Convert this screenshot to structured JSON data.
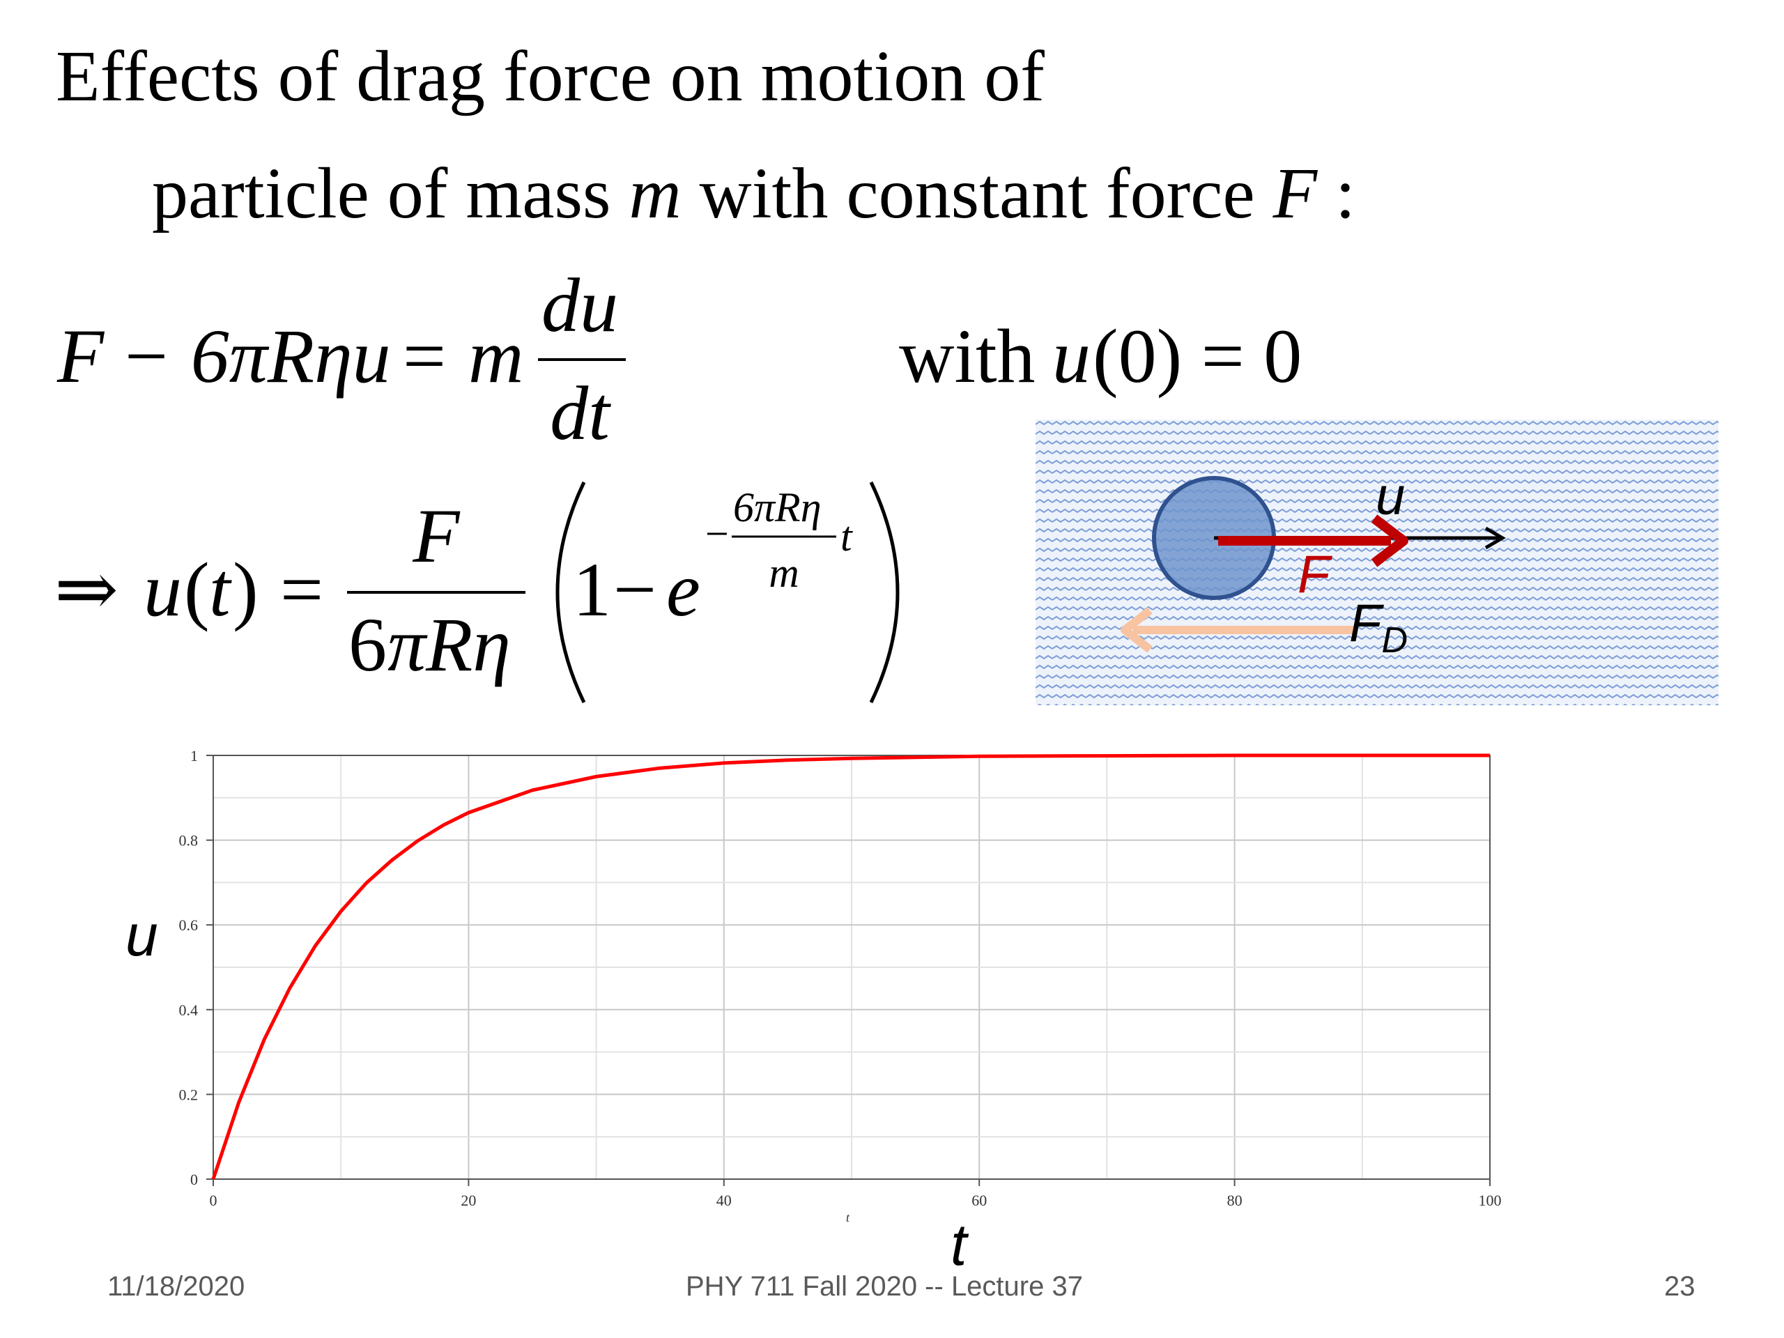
{
  "slide": {
    "title_line1": "Effects of drag force on motion of",
    "title_line2_a": "particle of mass ",
    "title_line2_m": "m",
    "title_line2_b": " with constant force ",
    "title_line2_F": "F",
    "title_line2_c": " :"
  },
  "equations": {
    "eq1_lhs_F": "F",
    "eq1_lhs_rest": "− 6πRηu",
    "eq1_eq": "=",
    "eq1_m": "m",
    "eq1_num": "du",
    "eq1_den": "dt",
    "eq1_with": "with",
    "eq1_cond_u": "u",
    "eq1_cond_rest": "(0) = 0",
    "eq2_arrow": "⇒",
    "eq2_u": "u",
    "eq2_t": "t",
    "eq2_paren_open": "(",
    "eq2_paren_close": ")",
    "eq2_eq": "=",
    "eq2_num": "F",
    "eq2_den_a": "6",
    "eq2_den_b": "πRη",
    "eq2_one": "1",
    "eq2_minus": "−",
    "eq2_e": "e",
    "eq2_exp_minus": "−",
    "eq2_exp_num": "6πRη",
    "eq2_exp_den": "m",
    "eq2_exp_t": "t"
  },
  "diagram": {
    "label_u": "u",
    "label_F": "F",
    "label_FD": "F",
    "label_FD_sub": "D",
    "colors": {
      "fluid_bg": "#eef3fb",
      "wave": "#7f9fd8",
      "ball_fill": "#6f94cc",
      "ball_stroke": "#2f528f",
      "force_F": "#c00000",
      "force_FD": "#f7c3a1",
      "velocity": "#000000"
    }
  },
  "plot": {
    "ylabel_big": "u",
    "xlabel_big": "t",
    "xlabel_small": "t"
  },
  "chart_data": {
    "type": "line",
    "title": "",
    "xlabel": "t",
    "ylabel": "u",
    "xlim": [
      0,
      100
    ],
    "ylim": [
      0,
      1
    ],
    "x_ticks": [
      "0",
      "20",
      "40",
      "60",
      "80",
      "100"
    ],
    "y_ticks": [
      "0",
      "0.2",
      "0.4",
      "0.6",
      "0.8",
      "1"
    ],
    "grid": true,
    "series": [
      {
        "color": "#ff0000",
        "x": [
          0,
          2,
          4,
          6,
          8,
          10,
          12,
          14,
          16,
          18,
          20,
          25,
          30,
          35,
          40,
          45,
          50,
          60,
          70,
          80,
          90,
          100
        ],
        "y": [
          0,
          0.181,
          0.33,
          0.451,
          0.551,
          0.632,
          0.699,
          0.753,
          0.798,
          0.835,
          0.865,
          0.918,
          0.95,
          0.97,
          0.982,
          0.989,
          0.993,
          0.998,
          0.999,
          1.0,
          1.0,
          1.0
        ]
      }
    ]
  },
  "footer": {
    "date": "11/18/2020",
    "course": "PHY 711  Fall 2020 -- Lecture 37",
    "page": "23"
  }
}
